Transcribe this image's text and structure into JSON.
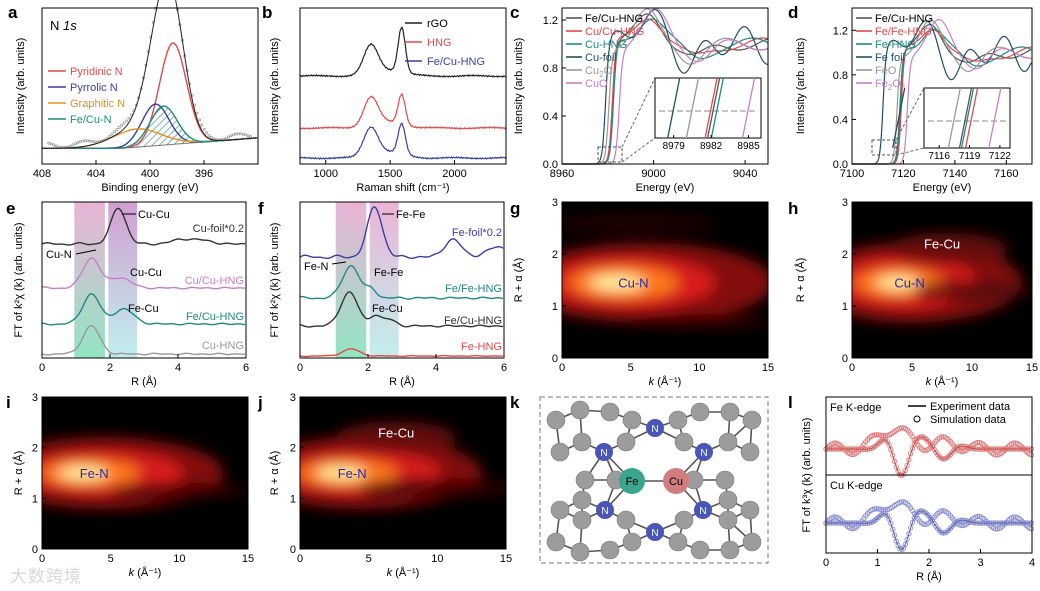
{
  "watermark": "大数跨境",
  "chart_data": [
    {
      "panel": "a",
      "type": "line",
      "inset_text": "N 1s",
      "xlabel": "Binding energy (eV)",
      "ylabel": "Intensity (arb. units)",
      "xlim": [
        408,
        392
      ],
      "xticks": [
        408,
        404,
        400,
        396
      ],
      "series": [
        {
          "name": "Pyridinic N",
          "color": "#e04a4a",
          "center": 398.3,
          "width": 1.0,
          "amp": 0.78
        },
        {
          "name": "Pyrrolic N",
          "color": "#3a3f9e",
          "center": 399.6,
          "width": 1.0,
          "amp": 0.32
        },
        {
          "name": "Graphitic N",
          "color": "#e3901e",
          "center": 401.0,
          "width": 1.8,
          "amp": 0.14
        },
        {
          "name": "Fe/Cu-N",
          "color": "#1f8a7e",
          "center": 399.0,
          "width": 1.0,
          "amp": 0.3
        }
      ]
    },
    {
      "panel": "b",
      "type": "line",
      "xlabel": "Raman shift (cm⁻¹)",
      "ylabel": "Intensity (arb. units)",
      "xlim": [
        800,
        2400
      ],
      "xticks": [
        1000,
        1500,
        2000
      ],
      "series": [
        {
          "name": "rGO",
          "color": "#222222"
        },
        {
          "name": "HNG",
          "color": "#e04a4a"
        },
        {
          "name": "Fe/Cu-HNG",
          "color": "#3a3f9e"
        }
      ],
      "peaks_cm1": [
        1350,
        1590
      ]
    },
    {
      "panel": "c",
      "type": "line",
      "xlabel": "Energy (eV)",
      "ylabel": "Intensity (arb. units)",
      "xlim": [
        8960,
        9050
      ],
      "ylim": [
        0,
        1.3
      ],
      "xticks": [
        8960,
        9000,
        9040
      ],
      "yticks": [
        0.0,
        0.4,
        0.8,
        1.2
      ],
      "series": [
        {
          "name": "Fe/Cu-HNG",
          "color": "#555555",
          "edge": 8982.2
        },
        {
          "name": "Cu/Cu-HNG",
          "color": "#e04a4a",
          "edge": 8982.0
        },
        {
          "name": "Cu-HNG",
          "color": "#1f8a7e",
          "edge": 8982.5
        },
        {
          "name": "Cu-foil",
          "color": "#1f4e66",
          "edge": 8979.0
        },
        {
          "name": "Cu₂O",
          "color": "#999999",
          "edge": 8980.5
        },
        {
          "name": "CuO",
          "color": "#c77fc7",
          "edge": 8985.0
        }
      ],
      "inset_xticks": [
        "8979",
        "8982",
        "8985"
      ]
    },
    {
      "panel": "d",
      "type": "line",
      "xlabel": "Energy (eV)",
      "ylabel": "Intensity (arb. units)",
      "xlim": [
        7100,
        7170
      ],
      "ylim": [
        0,
        1.4
      ],
      "xticks": [
        7100,
        7120,
        7140,
        7160
      ],
      "yticks": [
        0.0,
        0.4,
        0.8,
        1.2
      ],
      "series": [
        {
          "name": "Fe/Cu-HNG",
          "color": "#555555",
          "edge": 7118.6
        },
        {
          "name": "Fe/Fe-HNG",
          "color": "#e04a4a",
          "edge": 7119.2
        },
        {
          "name": "Fe-HNG",
          "color": "#1f8a7e",
          "edge": 7118.8
        },
        {
          "name": "Fe foil",
          "color": "#1f4e66",
          "edge": 7112.0
        },
        {
          "name": "FeO",
          "color": "#999999",
          "edge": 7117.5
        },
        {
          "name": "Fe₂O₃",
          "color": "#c77fc7",
          "edge": 7121.5
        }
      ],
      "inset_xticks": [
        "7116",
        "7119",
        "7122"
      ]
    },
    {
      "panel": "e",
      "type": "line",
      "xlabel": "R (Å)",
      "ylabel": "FT of k²χ (k) (arb. units)",
      "xlim": [
        0,
        6
      ],
      "xticks": [
        0,
        2,
        4,
        6
      ],
      "series": [
        {
          "name": "Cu-foil*0.2",
          "color": "#333333"
        },
        {
          "name": "Cu/Cu-HNG",
          "color": "#c77fc7"
        },
        {
          "name": "Fe/Cu-HNG",
          "color": "#1f8a7e"
        },
        {
          "name": "Cu-HNG",
          "color": "#999999"
        }
      ],
      "annotations": [
        "Cu-Cu",
        "Cu-N",
        "Cu-Cu",
        "Fe-Cu"
      ]
    },
    {
      "panel": "f",
      "type": "line",
      "xlabel": "R (Å)",
      "ylabel": "FT of k²χ (k) (arb. units)",
      "xlim": [
        0,
        6
      ],
      "xticks": [
        0,
        2,
        4,
        6
      ],
      "series": [
        {
          "name": "Fe-foil*0.2",
          "color": "#3a3f9e"
        },
        {
          "name": "Fe/Fe-HNG",
          "color": "#1f8a7e"
        },
        {
          "name": "Fe/Cu-HNG",
          "color": "#333333"
        },
        {
          "name": "Fe-HNG",
          "color": "#e04a4a"
        }
      ],
      "annotations": [
        "Fe-Fe",
        "Fe-N",
        "Fe-Fe",
        "Fe-Cu"
      ]
    },
    {
      "panel": "g",
      "type": "heatmap",
      "xlabel": "k (Å⁻¹)",
      "ylabel": "R + α (Å)",
      "xlim": [
        0,
        15
      ],
      "ylim": [
        0,
        3
      ],
      "xticks": [
        0,
        5,
        10,
        15
      ],
      "yticks": [
        0,
        1,
        2,
        3
      ],
      "labels": [
        {
          "text": "Cu-N",
          "k": 5.2,
          "r": 1.45
        }
      ]
    },
    {
      "panel": "h",
      "type": "heatmap",
      "xlabel": "k (Å⁻¹)",
      "ylabel": "R + α (Å)",
      "xlim": [
        0,
        15
      ],
      "ylim": [
        0,
        3
      ],
      "xticks": [
        0,
        5,
        10,
        15
      ],
      "yticks": [
        0,
        1,
        2,
        3
      ],
      "labels": [
        {
          "text": "Cu-N",
          "k": 4.8,
          "r": 1.45
        },
        {
          "text": "Fe-Cu",
          "k": 7.5,
          "r": 2.2
        }
      ]
    },
    {
      "panel": "i",
      "type": "heatmap",
      "xlabel": "k (Å⁻¹)",
      "ylabel": "R + α (Å)",
      "xlim": [
        0,
        15
      ],
      "ylim": [
        0,
        3
      ],
      "xticks": [
        0,
        5,
        10,
        15
      ],
      "yticks": [
        0,
        1,
        2,
        3
      ],
      "labels": [
        {
          "text": "Fe-N",
          "k": 3.8,
          "r": 1.5
        }
      ]
    },
    {
      "panel": "j",
      "type": "heatmap",
      "xlabel": "k (Å⁻¹)",
      "ylabel": "R + α (Å)",
      "xlim": [
        0,
        15
      ],
      "ylim": [
        0,
        3
      ],
      "xticks": [
        0,
        5,
        10,
        15
      ],
      "yticks": [
        0,
        1,
        2,
        3
      ],
      "labels": [
        {
          "text": "Fe-N",
          "k": 3.8,
          "r": 1.5
        },
        {
          "text": "Fe-Cu",
          "k": 7.0,
          "r": 2.3
        }
      ]
    },
    {
      "panel": "l",
      "type": "line",
      "xlabel": "R (Å)",
      "ylabel": "FT of k³χ (k) (arb. units)",
      "xlim": [
        0,
        4
      ],
      "xticks": [
        0,
        1,
        2,
        3,
        4
      ],
      "legend": [
        "Experiment data",
        "Simulation data"
      ],
      "subpanels": [
        "Fe K-edge",
        "Cu K-edge"
      ]
    }
  ],
  "structure_k": {
    "metal_labels": [
      "Fe",
      "Cu"
    ],
    "n_label": "N",
    "colors": {
      "carbon": "#9c9c9c",
      "nitrogen": "#4a55b8",
      "fe": "#3aa58e",
      "cu": "#d27d7d"
    }
  },
  "colors": {
    "red": "#e04a4a",
    "blue": "#3a3f9e",
    "orange": "#e3901e",
    "teal": "#1f8a7e",
    "purple": "#c77fc7",
    "pink_band": "#e7a6cf",
    "cyan_band": "#b6ecea"
  }
}
